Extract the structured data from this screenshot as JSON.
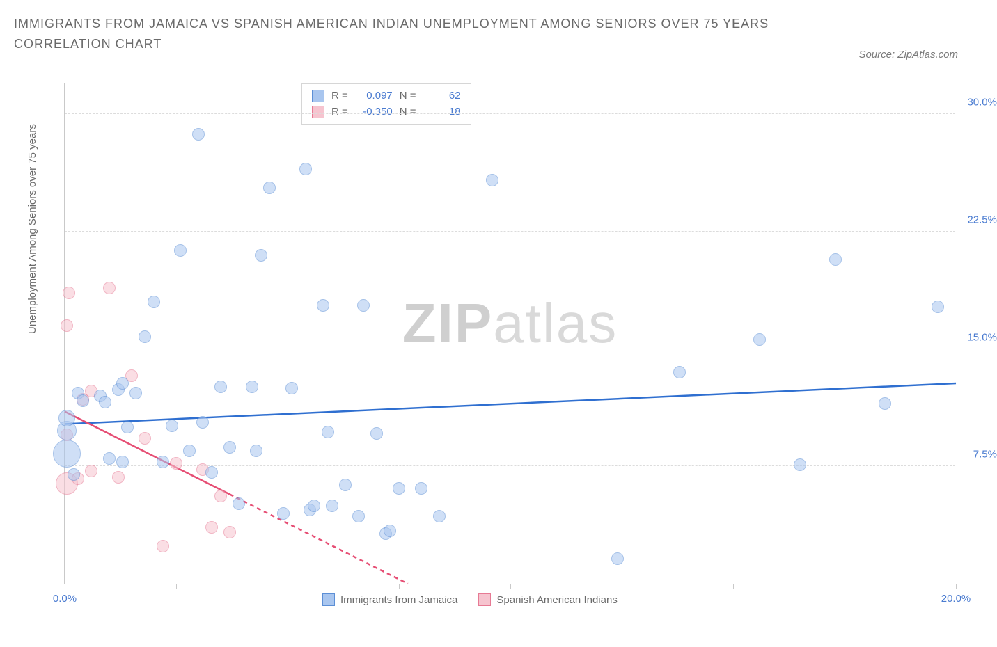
{
  "title": "IMMIGRANTS FROM JAMAICA VS SPANISH AMERICAN INDIAN UNEMPLOYMENT AMONG SENIORS OVER 75 YEARS CORRELATION CHART",
  "source_label": "Source: ZipAtlas.com",
  "ylabel": "Unemployment Among Seniors over 75 years",
  "watermark_a": "ZIP",
  "watermark_b": "atlas",
  "chart": {
    "type": "scatter",
    "xlim": [
      0,
      20
    ],
    "ylim": [
      0,
      32
    ],
    "x_ticks": [
      0,
      2.5,
      5,
      7.5,
      10,
      12.5,
      15,
      17.5,
      20
    ],
    "x_tick_labels": {
      "0": "0.0%",
      "20": "20.0%"
    },
    "y_gridlines": [
      7.5,
      15,
      22.5,
      30
    ],
    "y_tick_labels": {
      "7.5": "7.5%",
      "15": "15.0%",
      "22.5": "22.5%",
      "30": "30.0%"
    },
    "background_color": "#ffffff",
    "grid_color": "#dcdcdc",
    "axis_color": "#c9c9c9",
    "label_color": "#4a7bd0",
    "marker_radius": 9,
    "marker_opacity": 0.55,
    "series": [
      {
        "name": "Immigrants from Jamaica",
        "color_fill": "#a9c6ef",
        "color_stroke": "#5c8fd6",
        "R": "0.097",
        "N": "62",
        "trend": {
          "x1": 0,
          "y1": 10.2,
          "x2": 20,
          "y2": 12.8,
          "color": "#2f6fd0",
          "width": 2.5,
          "dash_after_x": null
        },
        "points": [
          [
            0.05,
            8.3,
            20
          ],
          [
            0.05,
            9.8,
            14
          ],
          [
            0.05,
            10.6,
            12
          ],
          [
            0.2,
            7.0
          ],
          [
            0.3,
            12.2
          ],
          [
            0.4,
            11.7
          ],
          [
            0.8,
            12.0
          ],
          [
            0.9,
            11.6
          ],
          [
            1.0,
            8.0
          ],
          [
            1.2,
            12.4
          ],
          [
            1.3,
            7.8
          ],
          [
            1.3,
            12.8
          ],
          [
            1.4,
            10.0
          ],
          [
            1.6,
            12.2
          ],
          [
            1.8,
            15.8
          ],
          [
            2.0,
            18.0
          ],
          [
            2.2,
            7.8
          ],
          [
            2.4,
            10.1
          ],
          [
            2.6,
            21.3
          ],
          [
            2.8,
            8.5
          ],
          [
            3.0,
            28.7
          ],
          [
            3.1,
            10.3
          ],
          [
            3.3,
            7.1
          ],
          [
            3.5,
            12.6
          ],
          [
            3.7,
            8.7
          ],
          [
            3.9,
            5.1
          ],
          [
            4.2,
            12.6
          ],
          [
            4.3,
            8.5
          ],
          [
            4.4,
            21.0
          ],
          [
            4.6,
            25.3
          ],
          [
            4.9,
            4.5
          ],
          [
            5.1,
            12.5
          ],
          [
            5.4,
            26.5
          ],
          [
            5.5,
            4.7
          ],
          [
            5.6,
            5.0
          ],
          [
            5.8,
            17.8
          ],
          [
            5.9,
            9.7
          ],
          [
            6.0,
            5.0
          ],
          [
            6.3,
            6.3
          ],
          [
            6.6,
            4.3
          ],
          [
            6.7,
            17.8
          ],
          [
            7.0,
            9.6
          ],
          [
            7.2,
            3.2
          ],
          [
            7.3,
            3.4
          ],
          [
            7.5,
            6.1
          ],
          [
            8.0,
            6.1
          ],
          [
            8.4,
            4.3
          ],
          [
            9.6,
            25.8
          ],
          [
            12.4,
            1.6
          ],
          [
            13.8,
            13.5
          ],
          [
            15.6,
            15.6
          ],
          [
            16.5,
            7.6
          ],
          [
            17.3,
            20.7
          ],
          [
            18.4,
            11.5
          ],
          [
            19.6,
            17.7
          ]
        ]
      },
      {
        "name": "Spanish American Indians",
        "color_fill": "#f6c4cf",
        "color_stroke": "#e77a94",
        "R": "-0.350",
        "N": "18",
        "trend": {
          "x1": 0,
          "y1": 11.0,
          "x2": 7.7,
          "y2": 0,
          "color": "#e64e74",
          "width": 2.5,
          "dash_after_x": 3.7
        },
        "points": [
          [
            0.05,
            6.4,
            16
          ],
          [
            0.05,
            9.5
          ],
          [
            0.05,
            16.5
          ],
          [
            0.1,
            18.6
          ],
          [
            0.3,
            6.7
          ],
          [
            0.4,
            11.8
          ],
          [
            0.6,
            7.2
          ],
          [
            0.6,
            12.3
          ],
          [
            1.0,
            18.9
          ],
          [
            1.2,
            6.8
          ],
          [
            1.5,
            13.3
          ],
          [
            1.8,
            9.3
          ],
          [
            2.2,
            2.4
          ],
          [
            2.5,
            7.7
          ],
          [
            3.1,
            7.3
          ],
          [
            3.3,
            3.6
          ],
          [
            3.5,
            5.6
          ],
          [
            3.7,
            3.3
          ]
        ]
      }
    ]
  },
  "legend_box": {
    "r_label": "R =",
    "n_label": "N ="
  },
  "bottom_legend": {
    "series1": "Immigrants from Jamaica",
    "series2": "Spanish American Indians"
  }
}
